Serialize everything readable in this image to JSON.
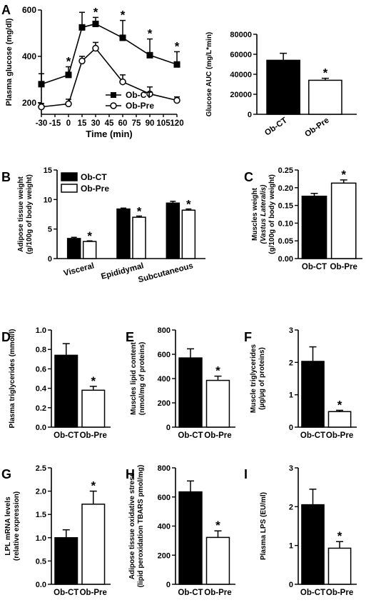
{
  "panels": {
    "A": "A",
    "B": "B",
    "C": "C",
    "D": "D",
    "E": "E",
    "F": "F",
    "G": "G",
    "H": "H",
    "I": "I"
  },
  "chart_data": [
    {
      "id": "A",
      "type": "line",
      "xlabel": "Time (min)",
      "ylabel": "Plasma glucose (mg/dl)",
      "x": [
        -30,
        0,
        15,
        30,
        60,
        90,
        120
      ],
      "xticks": [
        "-30",
        "-15",
        "0",
        "15",
        "30",
        "45",
        "60",
        "75",
        "90",
        "105",
        "120"
      ],
      "xtick_values": [
        -30,
        -15,
        0,
        15,
        30,
        45,
        60,
        75,
        90,
        105,
        120
      ],
      "ylim": [
        150,
        600
      ],
      "yticks": [
        200,
        400,
        600
      ],
      "series": [
        {
          "name": "Ob-CT",
          "marker": "square",
          "values": [
            280,
            320,
            525,
            540,
            480,
            405,
            365
          ],
          "err": [
            45,
            35,
            65,
            28,
            75,
            70,
            55
          ]
        },
        {
          "name": "Ob-Pre",
          "marker": "circle",
          "values": [
            182,
            195,
            380,
            435,
            290,
            238,
            210
          ],
          "err": [
            15,
            20,
            20,
            25,
            30,
            30,
            15
          ]
        }
      ],
      "stars_x": [
        0,
        30,
        60,
        90,
        120
      ],
      "annotation": "*"
    },
    {
      "id": "A2",
      "type": "bar",
      "ylabel": "Glucose AUC (mg/L*min)",
      "categories": [
        "Ob-CT",
        "Ob-Pre"
      ],
      "values": [
        54000,
        34000
      ],
      "err": [
        7000,
        2000
      ],
      "ylim": [
        0,
        80000
      ],
      "yticks": [
        0,
        20000,
        40000,
        60000,
        80000
      ],
      "stars": [
        false,
        true
      ]
    },
    {
      "id": "B",
      "type": "bar",
      "ylabel": "Adipose tissue weight\n(g/100g of body weight)",
      "categories": [
        "Visceral",
        "Epididymal",
        "Subcutaneous"
      ],
      "series": [
        {
          "name": "Ob-CT",
          "values": [
            3.4,
            8.4,
            9.4
          ],
          "err": [
            0.2,
            0.15,
            0.3
          ]
        },
        {
          "name": "Ob-Pre",
          "values": [
            2.9,
            7.0,
            8.2
          ],
          "err": [
            0.1,
            0.2,
            0.2
          ]
        }
      ],
      "ylim": [
        0,
        15
      ],
      "yticks": [
        0,
        5,
        10,
        15
      ],
      "legend": "top-left"
    },
    {
      "id": "C",
      "type": "bar",
      "ylabel": "Muscles weight\n(Vastus Lateralis)\n(g/100g of body weight)",
      "categories": [
        "Ob-CT",
        "Ob-Pre"
      ],
      "values": [
        0.176,
        0.213
      ],
      "err": [
        0.008,
        0.009
      ],
      "ylim": [
        0,
        0.25
      ],
      "yticks": [
        "0.00",
        "0.05",
        "0.10",
        "0.15",
        "0.20",
        "0.25"
      ],
      "stars": [
        false,
        true
      ]
    },
    {
      "id": "D",
      "type": "bar",
      "ylabel": "Plasma triglycerides (mmol/l)",
      "categories": [
        "Ob-CT",
        "Ob-Pre"
      ],
      "values": [
        0.74,
        0.38
      ],
      "err": [
        0.12,
        0.04
      ],
      "ylim": [
        0,
        1.0
      ],
      "yticks": [
        "0.0",
        "0.2",
        "0.4",
        "0.6",
        "0.8",
        "1.0"
      ],
      "stars": [
        false,
        true
      ]
    },
    {
      "id": "E",
      "type": "bar",
      "ylabel": "Muscles lipid content\n(nmol/mg of proteins)",
      "categories": [
        "Ob-CT",
        "Ob-Pre"
      ],
      "values": [
        570,
        385
      ],
      "err": [
        75,
        35
      ],
      "ylim": [
        0,
        800
      ],
      "yticks": [
        0,
        200,
        400,
        600,
        800
      ],
      "stars": [
        false,
        true
      ]
    },
    {
      "id": "F",
      "type": "bar",
      "ylabel": "Muscle triglycerides\n(µg/µg of proteins)",
      "categories": [
        "Ob-CT",
        "Ob-Pre"
      ],
      "values": [
        2.03,
        0.48
      ],
      "err": [
        0.45,
        0.04
      ],
      "ylim": [
        0,
        3
      ],
      "yticks": [
        0,
        1,
        2,
        3
      ],
      "stars": [
        false,
        true
      ]
    },
    {
      "id": "G",
      "type": "bar",
      "ylabel": "LPL mRNA levels\n(relative expression)",
      "categories": [
        "Ob-CT",
        "Ob-Pre"
      ],
      "values": [
        1.0,
        1.72
      ],
      "err": [
        0.17,
        0.28
      ],
      "ylim": [
        0,
        2.5
      ],
      "yticks": [
        "0.0",
        "0.5",
        "1.0",
        "1.5",
        "2.0",
        "2.5"
      ],
      "stars": [
        false,
        true
      ]
    },
    {
      "id": "H",
      "type": "bar",
      "ylabel": "Adipose tissue oxidative stress\n(lipid peroxidation TBARS pmol/mg)",
      "categories": [
        "Ob-CT",
        "Ob-Pre"
      ],
      "values": [
        635,
        322
      ],
      "err": [
        75,
        45
      ],
      "ylim": [
        0,
        800
      ],
      "yticks": [
        0,
        200,
        400,
        600,
        800
      ],
      "stars": [
        false,
        true
      ]
    },
    {
      "id": "I",
      "type": "bar",
      "ylabel": "Plasma LPS (EU/ml)",
      "categories": [
        "Ob-CT",
        "Ob-Pre"
      ],
      "values": [
        2.05,
        0.93
      ],
      "err": [
        0.4,
        0.17
      ],
      "ylim": [
        0,
        3
      ],
      "yticks": [
        0,
        1,
        2,
        3
      ],
      "stars": [
        false,
        true
      ]
    }
  ]
}
